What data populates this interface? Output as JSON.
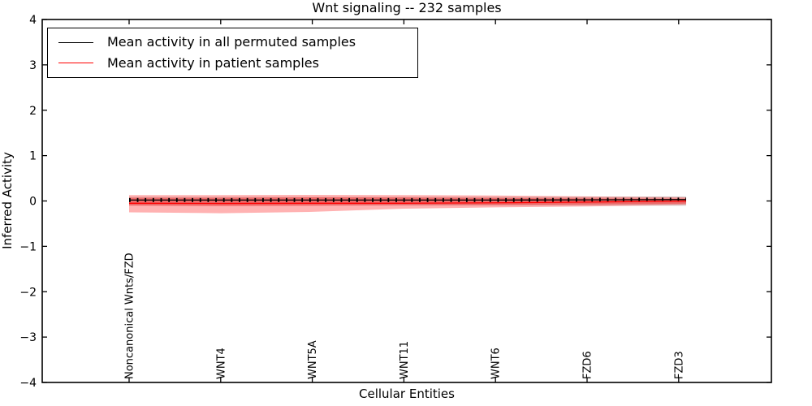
{
  "figure": {
    "title": "Wnt signaling -- 232 samples",
    "xlabel": "Cellular Entities",
    "ylabel": "Inferred Activity"
  },
  "legend": {
    "position": "upper left",
    "items": [
      {
        "label": "Mean activity in all permuted samples",
        "color": "#000000"
      },
      {
        "label": "Mean activity in patient samples",
        "color": "#ff0000"
      }
    ]
  },
  "axes": {
    "ylim": [
      -4,
      4
    ],
    "ytick_values": [
      4,
      3,
      2,
      1,
      0,
      -1,
      -2,
      -3,
      -4
    ],
    "ytick_labels": [
      "4",
      "3",
      "2",
      "1",
      "0",
      "−1",
      "−2",
      "−3",
      "−4"
    ],
    "xtick_labels": [
      "Noncanonical Wnts/FZD",
      "WNT4",
      "WNT5A",
      "WNT11",
      "WNT6",
      "FZD6",
      "FZD3"
    ],
    "grid": false
  },
  "chart_data": {
    "type": "line",
    "title": "Wnt signaling -- 232 samples",
    "xlabel": "Cellular Entities",
    "ylabel": "Inferred Activity",
    "ylim": [
      -4,
      4
    ],
    "legend_position": "upper left",
    "grid": false,
    "n_points_approx": 71,
    "categories": [
      "Noncanonical Wnts/FZD",
      "WNT4",
      "WNT5A",
      "WNT11",
      "WNT6",
      "FZD6",
      "FZD3"
    ],
    "series": [
      {
        "name": "Mean activity in all permuted samples",
        "color": "#000000",
        "values": [
          0.02,
          0.02,
          0.02,
          0.02,
          0.02,
          0.025,
          0.03
        ]
      },
      {
        "name": "Mean activity in patient samples",
        "color": "#ff0000",
        "values": [
          -0.05,
          -0.055,
          -0.05,
          -0.05,
          -0.04,
          -0.025,
          -0.005
        ]
      }
    ],
    "bands": [
      {
        "name": "patient-band-outer",
        "color": "#ff0000",
        "opacity": 0.3,
        "upper": [
          0.13,
          0.13,
          0.135,
          0.13,
          0.12,
          0.1,
          0.085
        ],
        "lower": [
          -0.25,
          -0.27,
          -0.24,
          -0.17,
          -0.14,
          -0.12,
          -0.09
        ]
      },
      {
        "name": "patient-band-inner",
        "color": "#ff0000",
        "opacity": 0.3,
        "upper": [
          0.07,
          0.07,
          0.08,
          0.075,
          0.065,
          0.055,
          0.05
        ],
        "lower": [
          -0.1,
          -0.115,
          -0.105,
          -0.09,
          -0.085,
          -0.075,
          -0.06
        ]
      },
      {
        "name": "permuted-band",
        "color": "#8c8c8c",
        "opacity": 0.33,
        "upper": [
          0.09,
          0.09,
          0.09,
          0.09,
          0.09,
          0.095,
          0.1
        ],
        "lower": [
          -0.1,
          -0.1,
          -0.1,
          -0.1,
          -0.1,
          -0.1,
          -0.105
        ]
      }
    ],
    "profile": {
      "x_frac": [
        0,
        0.164,
        0.329,
        0.493,
        0.658,
        0.822,
        0.987,
        1.0
      ],
      "permuted_mean": [
        0.02,
        0.02,
        0.02,
        0.02,
        0.02,
        0.025,
        0.03,
        0.03
      ],
      "patient_mean": [
        -0.05,
        -0.055,
        -0.05,
        -0.05,
        -0.04,
        -0.025,
        -0.005,
        0.0
      ],
      "patient_upper": [
        0.13,
        0.13,
        0.135,
        0.13,
        0.12,
        0.1,
        0.085,
        0.08
      ],
      "patient_lower": [
        -0.25,
        -0.27,
        -0.24,
        -0.17,
        -0.14,
        -0.12,
        -0.09,
        -0.085
      ],
      "patient_inner_upper": [
        0.07,
        0.07,
        0.08,
        0.075,
        0.065,
        0.055,
        0.05,
        0.05
      ],
      "patient_inner_lower": [
        -0.1,
        -0.115,
        -0.105,
        -0.09,
        -0.085,
        -0.075,
        -0.06,
        -0.055
      ],
      "permuted_upper": [
        0.09,
        0.09,
        0.09,
        0.09,
        0.09,
        0.095,
        0.1,
        0.1
      ],
      "permuted_lower": [
        -0.1,
        -0.1,
        -0.1,
        -0.1,
        -0.1,
        -0.1,
        -0.105,
        -0.105
      ]
    },
    "colors": {
      "permuted_line": "#000000",
      "patient_line": "#ff0000",
      "patient_band": "#ff0000",
      "permuted_band": "#8c8c8c",
      "frame": "#000000"
    }
  }
}
